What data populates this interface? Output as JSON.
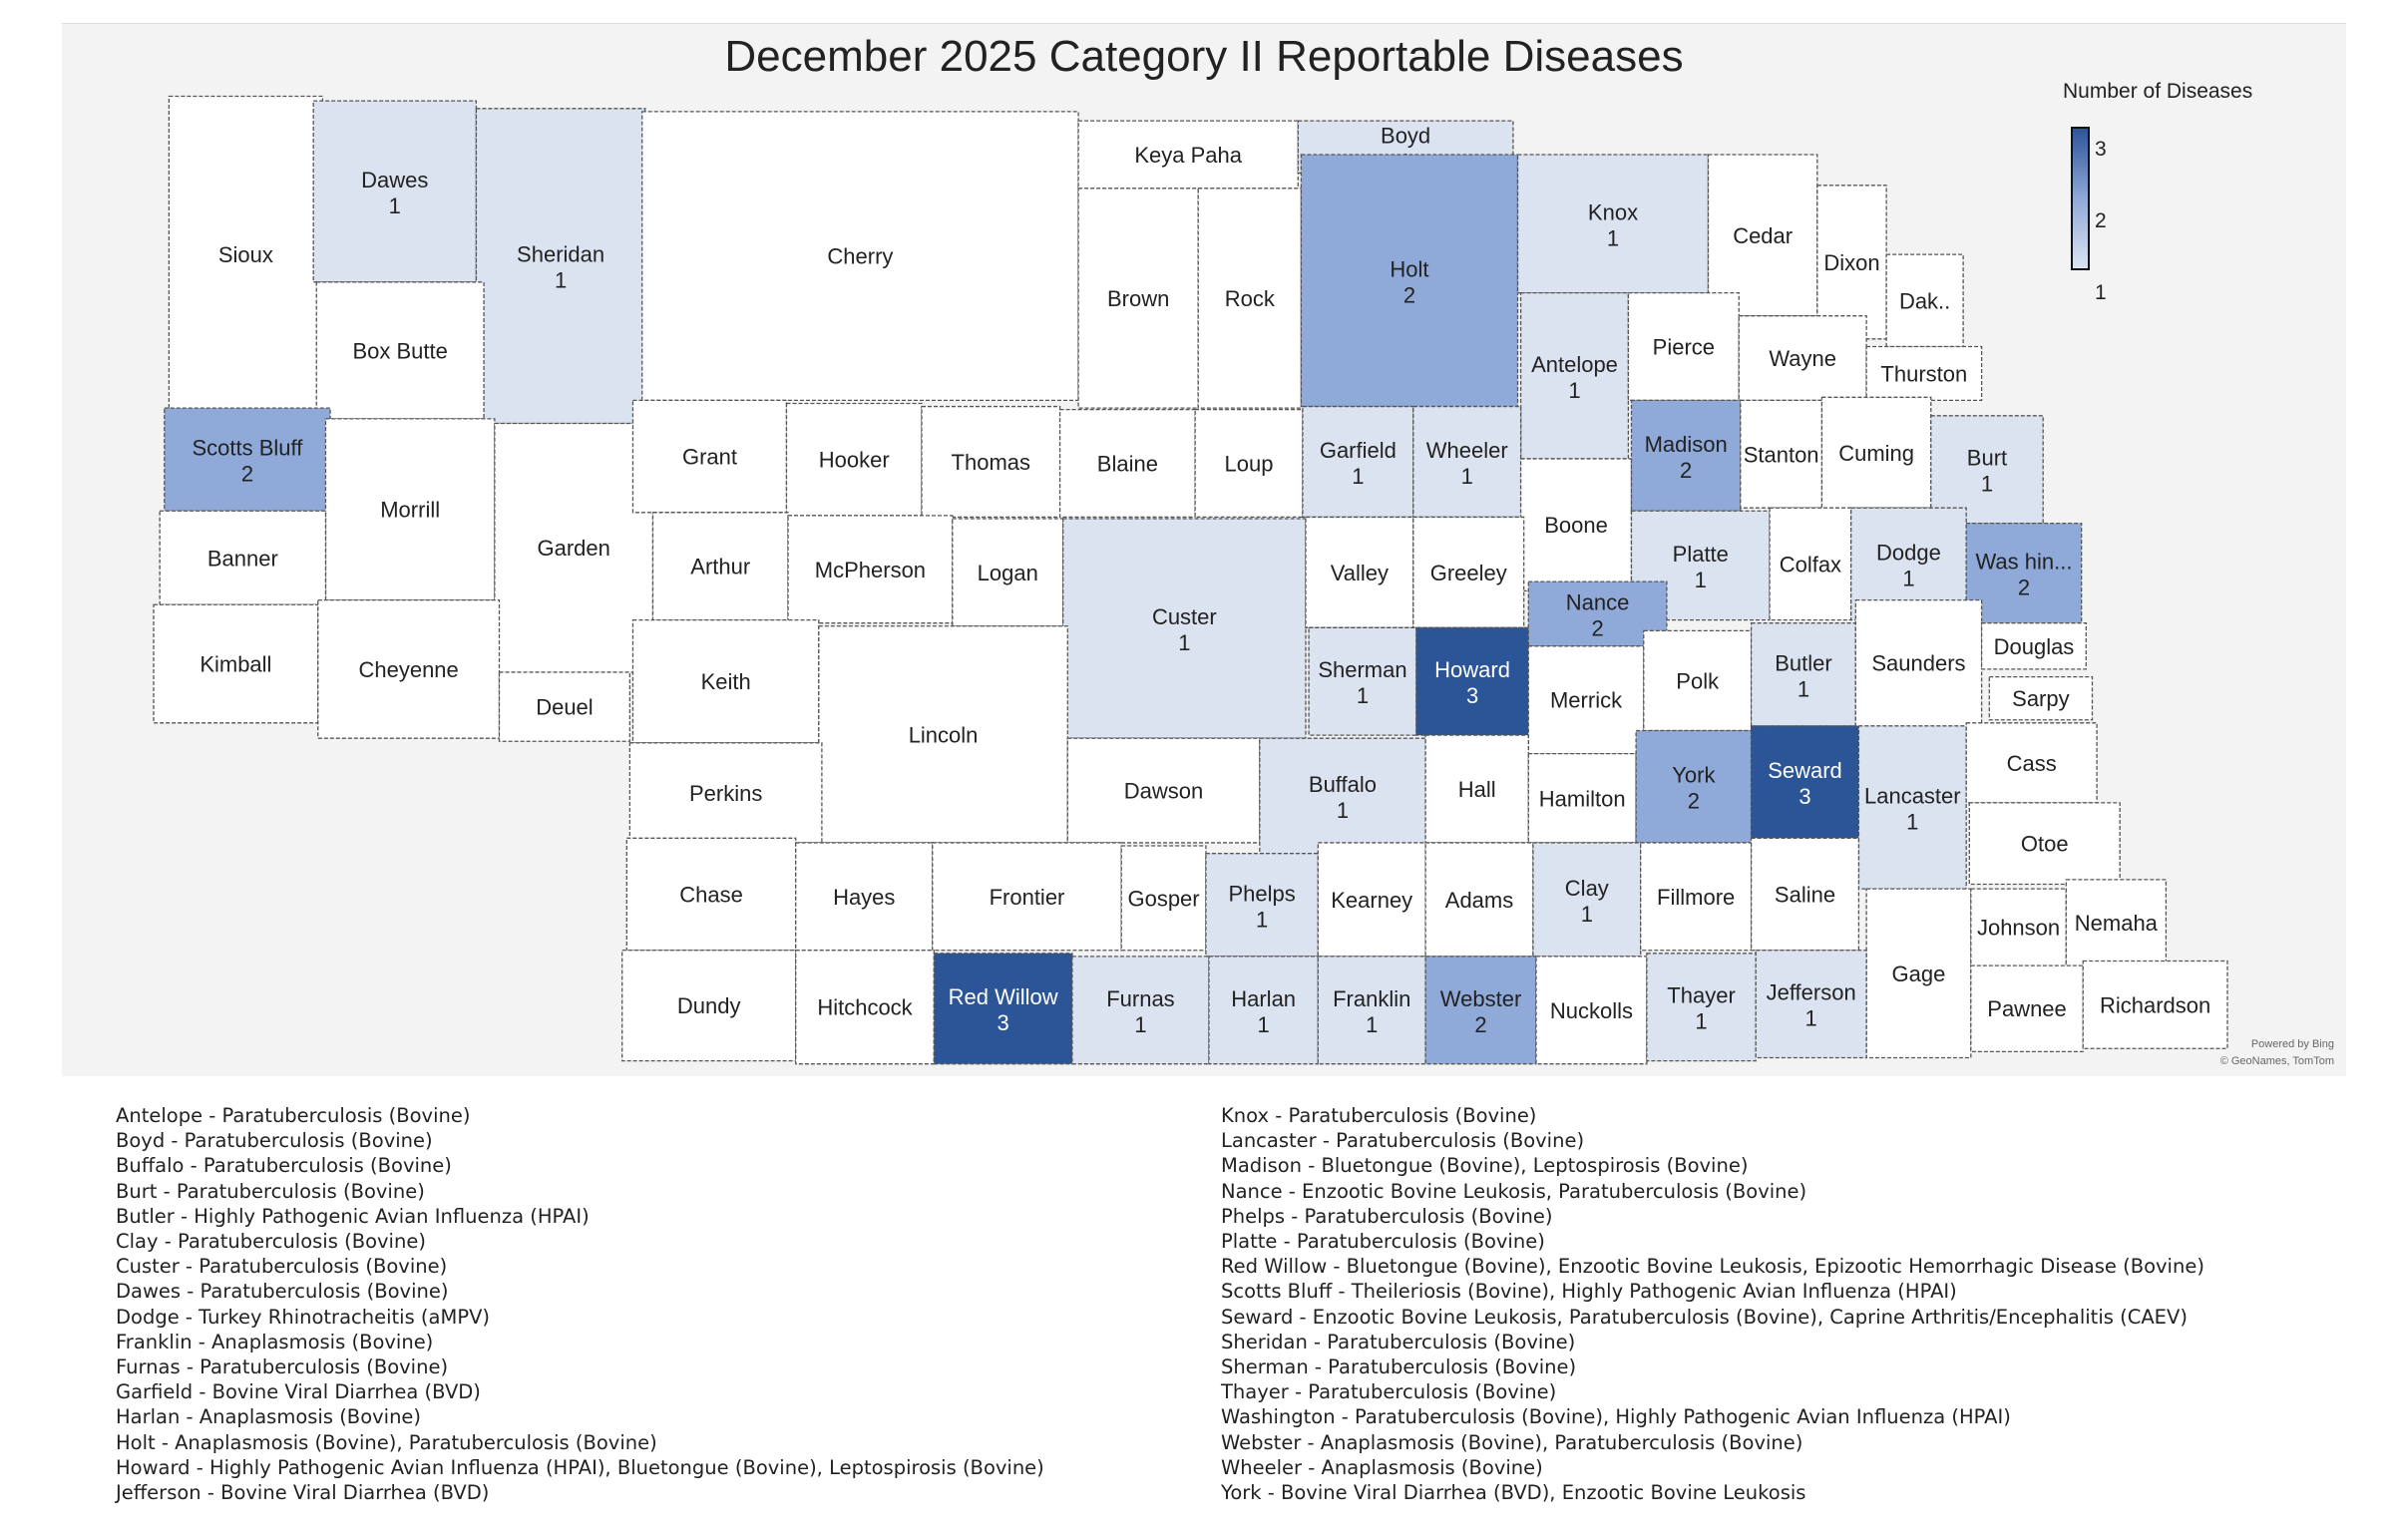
{
  "title": "December 2025 Category II Reportable Diseases",
  "legend": {
    "title": "Number of Diseases",
    "max": "3",
    "mid": "2",
    "min": "1"
  },
  "colors": {
    "0": "#ffffff",
    "1": "#dbe3f1",
    "2": "#8fa9d8",
    "3": "#2b5597"
  },
  "attribution": {
    "line1": "Powered by Bing",
    "line2": "© GeoNames, TomTom"
  },
  "counties": [
    {
      "name": "Sioux",
      "count": 0
    },
    {
      "name": "Dawes",
      "count": 1
    },
    {
      "name": "Sheridan",
      "count": 1
    },
    {
      "name": "Box Butte",
      "count": 0
    },
    {
      "name": "Cherry",
      "count": 0
    },
    {
      "name": "Keya Paha",
      "count": 0
    },
    {
      "name": "Boyd",
      "count": 1
    },
    {
      "name": "Brown",
      "count": 0
    },
    {
      "name": "Rock",
      "count": 0
    },
    {
      "name": "Holt",
      "count": 2
    },
    {
      "name": "Knox",
      "count": 1
    },
    {
      "name": "Cedar",
      "count": 0
    },
    {
      "name": "Dixon",
      "count": 0
    },
    {
      "name": "Dak..",
      "count": 0
    },
    {
      "name": "Antelope",
      "count": 1
    },
    {
      "name": "Pierce",
      "count": 0
    },
    {
      "name": "Wayne",
      "count": 0
    },
    {
      "name": "Thurston",
      "count": 0
    },
    {
      "name": "Scotts Bluff",
      "count": 2
    },
    {
      "name": "Morrill",
      "count": 0
    },
    {
      "name": "Garden",
      "count": 0
    },
    {
      "name": "Banner",
      "count": 0
    },
    {
      "name": "Kimball",
      "count": 0
    },
    {
      "name": "Cheyenne",
      "count": 0
    },
    {
      "name": "Deuel",
      "count": 0
    },
    {
      "name": "Grant",
      "count": 0
    },
    {
      "name": "Hooker",
      "count": 0
    },
    {
      "name": "Thomas",
      "count": 0
    },
    {
      "name": "Blaine",
      "count": 0
    },
    {
      "name": "Loup",
      "count": 0
    },
    {
      "name": "Garfield",
      "count": 1
    },
    {
      "name": "Wheeler",
      "count": 1
    },
    {
      "name": "Boone",
      "count": 0
    },
    {
      "name": "Madison",
      "count": 2
    },
    {
      "name": "Stanton",
      "count": 0
    },
    {
      "name": "Cuming",
      "count": 0
    },
    {
      "name": "Burt",
      "count": 1
    },
    {
      "name": "Arthur",
      "count": 0
    },
    {
      "name": "McPherson",
      "count": 0
    },
    {
      "name": "Logan",
      "count": 0
    },
    {
      "name": "Custer",
      "count": 1
    },
    {
      "name": "Valley",
      "count": 0
    },
    {
      "name": "Greeley",
      "count": 0
    },
    {
      "name": "Platte",
      "count": 1
    },
    {
      "name": "Colfax",
      "count": 0
    },
    {
      "name": "Dodge",
      "count": 1
    },
    {
      "name": "Was hin...",
      "count": 2
    },
    {
      "name": "Keith",
      "count": 0
    },
    {
      "name": "Lincoln",
      "count": 0
    },
    {
      "name": "Sherman",
      "count": 1
    },
    {
      "name": "Howard",
      "count": 3
    },
    {
      "name": "Nance",
      "count": 2
    },
    {
      "name": "Merrick",
      "count": 0
    },
    {
      "name": "Polk",
      "count": 0
    },
    {
      "name": "Butler",
      "count": 1
    },
    {
      "name": "Saunders",
      "count": 0
    },
    {
      "name": "Douglas",
      "count": 0
    },
    {
      "name": "Sarpy",
      "count": 0
    },
    {
      "name": "Perkins",
      "count": 0
    },
    {
      "name": "Dawson",
      "count": 0
    },
    {
      "name": "Buffalo",
      "count": 1
    },
    {
      "name": "Hall",
      "count": 0
    },
    {
      "name": "Hamilton",
      "count": 0
    },
    {
      "name": "York",
      "count": 2
    },
    {
      "name": "Seward",
      "count": 3
    },
    {
      "name": "Lancaster",
      "count": 1
    },
    {
      "name": "Cass",
      "count": 0
    },
    {
      "name": "Otoe",
      "count": 0
    },
    {
      "name": "Chase",
      "count": 0
    },
    {
      "name": "Hayes",
      "count": 0
    },
    {
      "name": "Frontier",
      "count": 0
    },
    {
      "name": "Gosper",
      "count": 0
    },
    {
      "name": "Phelps",
      "count": 1
    },
    {
      "name": "Kearney",
      "count": 0
    },
    {
      "name": "Adams",
      "count": 0
    },
    {
      "name": "Clay",
      "count": 1
    },
    {
      "name": "Fillmore",
      "count": 0
    },
    {
      "name": "Saline",
      "count": 0
    },
    {
      "name": "Gage",
      "count": 0
    },
    {
      "name": "Johnson",
      "count": 0
    },
    {
      "name": "Nemaha",
      "count": 0
    },
    {
      "name": "Dundy",
      "count": 0
    },
    {
      "name": "Hitchcock",
      "count": 0
    },
    {
      "name": "Red Willow",
      "count": 3
    },
    {
      "name": "Furnas",
      "count": 1
    },
    {
      "name": "Harlan",
      "count": 1
    },
    {
      "name": "Franklin",
      "count": 1
    },
    {
      "name": "Webster",
      "count": 2
    },
    {
      "name": "Nuckolls",
      "count": 0
    },
    {
      "name": "Thayer",
      "count": 1
    },
    {
      "name": "Jefferson",
      "count": 1
    },
    {
      "name": "Pawnee",
      "count": 0
    },
    {
      "name": "Richardson",
      "count": 0
    }
  ],
  "disease_list": {
    "left": [
      "Antelope - Paratuberculosis (Bovine)",
      "Boyd - Paratuberculosis (Bovine)",
      "Buffalo - Paratuberculosis (Bovine)",
      "Burt - Paratuberculosis (Bovine)",
      "Butler - Highly Pathogenic Avian Influenza (HPAI)",
      "Clay - Paratuberculosis (Bovine)",
      "Custer - Paratuberculosis (Bovine)",
      "Dawes - Paratuberculosis (Bovine)",
      "Dodge - Turkey Rhinotracheitis (aMPV)",
      "Franklin - Anaplasmosis (Bovine)",
      "Furnas - Paratuberculosis (Bovine)",
      "Garfield - Bovine Viral Diarrhea (BVD)",
      "Harlan - Anaplasmosis (Bovine)",
      "Holt - Anaplasmosis (Bovine), Paratuberculosis (Bovine)",
      "Howard - Highly Pathogenic Avian Influenza (HPAI), Bluetongue (Bovine), Leptospirosis (Bovine)",
      "Jefferson - Bovine Viral Diarrhea (BVD)"
    ],
    "right": [
      "Knox - Paratuberculosis (Bovine)",
      "Lancaster - Paratuberculosis (Bovine)",
      "Madison - Bluetongue (Bovine), Leptospirosis (Bovine)",
      "Nance - Enzootic Bovine Leukosis, Paratuberculosis (Bovine)",
      "Phelps - Paratuberculosis (Bovine)",
      "Platte - Paratuberculosis (Bovine)",
      "Red Willow - Bluetongue (Bovine), Enzootic Bovine Leukosis, Epizootic Hemorrhagic Disease (Bovine)",
      "Scotts Bluff - Theileriosis (Bovine), Highly Pathogenic Avian Influenza (HPAI)",
      "Seward - Enzootic Bovine Leukosis, Paratuberculosis (Bovine), Caprine Arthritis/Encephalitis (CAEV)",
      "Sheridan - Paratuberculosis (Bovine)",
      "Sherman - Paratuberculosis (Bovine)",
      "Thayer - Paratuberculosis (Bovine)",
      "Washington - Paratuberculosis (Bovine), Highly Pathogenic Avian Influenza (HPAI)",
      "Webster - Anaplasmosis (Bovine), Paratuberculosis (Bovine)",
      "Wheeler - Anaplasmosis (Bovine)",
      "York - Bovine Viral Diarrhea (BVD), Enzootic Bovine Leukosis"
    ]
  }
}
